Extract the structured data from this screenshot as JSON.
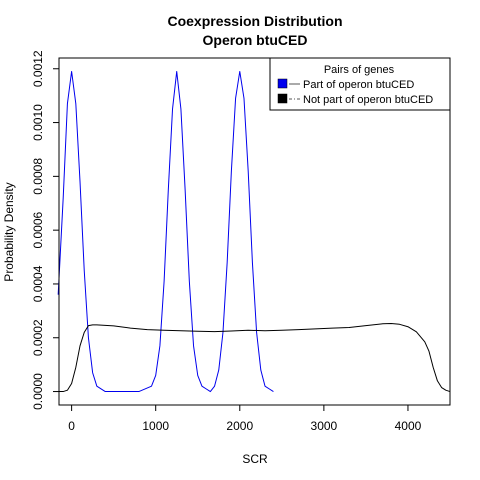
{
  "chart_data": {
    "type": "line",
    "title": "Coexpression Distribution",
    "subtitle": "Operon btuCED",
    "xlabel": "SCR",
    "ylabel": "Probability Density",
    "xlim": [
      -150,
      4500
    ],
    "ylim": [
      -5e-05,
      0.00124
    ],
    "x_ticks": [
      0,
      1000,
      2000,
      3000,
      4000
    ],
    "y_ticks": [
      0.0,
      0.0002,
      0.0004,
      0.0006,
      0.0008,
      0.001,
      0.0012
    ],
    "y_tick_labels": [
      "0.0000",
      "0.0002",
      "0.0004",
      "0.0006",
      "0.0008",
      "0.0010",
      "0.0012"
    ],
    "grid": false,
    "legend": {
      "title": "Pairs of genes",
      "position": "top-right",
      "entries": [
        "Part of operon btuCED",
        "Not part of operon btuCED"
      ]
    },
    "series": [
      {
        "name": "Part of operon btuCED",
        "color": "#0000ee",
        "line_style": "solid",
        "x": [
          -160,
          -100,
          -50,
          0,
          50,
          100,
          150,
          200,
          250,
          300,
          400,
          600,
          800,
          950,
          1000,
          1050,
          1100,
          1150,
          1200,
          1250,
          1300,
          1350,
          1400,
          1450,
          1500,
          1550,
          1600,
          1650,
          1700,
          1750,
          1800,
          1850,
          1900,
          1950,
          2000,
          2050,
          2100,
          2150,
          2200,
          2250,
          2300,
          2350,
          2400
        ],
        "y": [
          0.00036,
          0.00072,
          0.00107,
          0.00119,
          0.00107,
          0.00078,
          0.00045,
          0.0002,
          7e-05,
          2e-05,
          0.0,
          0.0,
          0.0,
          2e-05,
          6e-05,
          0.00017,
          0.00041,
          0.00075,
          0.00105,
          0.00119,
          0.00105,
          0.00075,
          0.00041,
          0.00017,
          6e-05,
          2e-05,
          1e-05,
          0.0,
          2e-05,
          8e-05,
          0.00022,
          0.00048,
          0.00082,
          0.00109,
          0.00119,
          0.00109,
          0.00082,
          0.00048,
          0.00022,
          8e-05,
          2e-05,
          1e-05,
          0.0
        ]
      },
      {
        "name": "Not part of operon btuCED",
        "color": "#000000",
        "line_style": "solid",
        "x": [
          -150,
          -100,
          -50,
          0,
          50,
          100,
          150,
          200,
          250,
          300,
          500,
          700,
          900,
          1100,
          1300,
          1500,
          1700,
          1900,
          2100,
          2300,
          2500,
          2700,
          2900,
          3100,
          3300,
          3500,
          3700,
          3800,
          3900,
          4000,
          4100,
          4200,
          4250,
          4300,
          4350,
          4400,
          4450,
          4500
        ],
        "y": [
          0.0,
          0.0,
          5e-06,
          3e-05,
          9e-05,
          0.00017,
          0.00022,
          0.000245,
          0.000248,
          0.000248,
          0.000244,
          0.000236,
          0.00023,
          0.000228,
          0.000226,
          0.000224,
          0.000223,
          0.000225,
          0.000228,
          0.000226,
          0.000228,
          0.00023,
          0.000233,
          0.000236,
          0.000238,
          0.000245,
          0.000252,
          0.000253,
          0.00025,
          0.000241,
          0.000222,
          0.000185,
          0.00015,
          9e-05,
          4e-05,
          1.5e-05,
          5e-06,
          0.0
        ]
      }
    ]
  }
}
